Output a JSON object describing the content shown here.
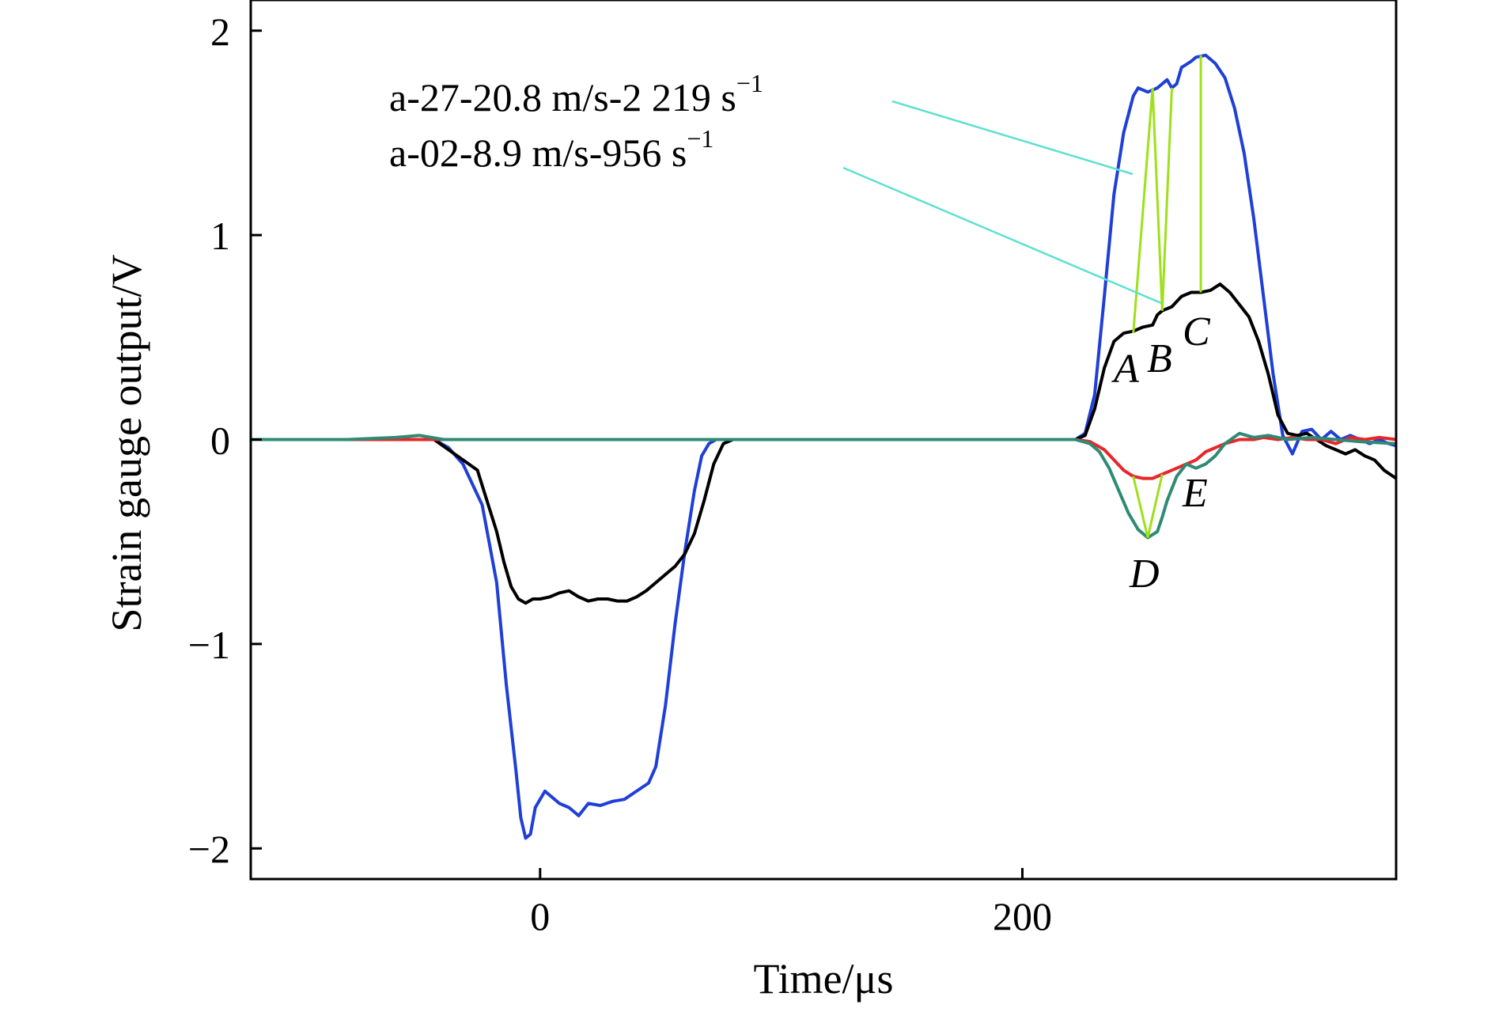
{
  "chart_data": {
    "type": "line",
    "xlabel": "Time/μs",
    "ylabel": "Strain gauge output/V",
    "xlim": [
      -120,
      355
    ],
    "ylim": [
      -2.15,
      2.15
    ],
    "x_ticks": [
      0,
      200
    ],
    "x_tick_labels": [
      "0",
      "200"
    ],
    "y_ticks": [
      -2,
      -1,
      0,
      1,
      2
    ],
    "y_tick_labels": [
      "−2",
      "−1",
      "0",
      "1",
      "2"
    ],
    "grid": false,
    "series": [
      {
        "color": "#1f3fd8",
        "x": [
          -120,
          -100,
          -80,
          -60,
          -44,
          -38,
          -32,
          -24,
          -18,
          -14,
          -10,
          -8,
          -6,
          -4,
          -2,
          2,
          5,
          8,
          12,
          16,
          20,
          25,
          30,
          35,
          40,
          45,
          48,
          52,
          56,
          60,
          64,
          67,
          70,
          73,
          76,
          80,
          100,
          150,
          200,
          222,
          226,
          230,
          234,
          238,
          242,
          246,
          248,
          252,
          256,
          260,
          262,
          264,
          266,
          270,
          272,
          276,
          280,
          284,
          288,
          292,
          296,
          300,
          304,
          308,
          312,
          316,
          320,
          324,
          328,
          332,
          336,
          340,
          344,
          348,
          352,
          355
        ],
        "y": [
          0,
          0,
          0,
          0,
          0,
          -0.04,
          -0.12,
          -0.32,
          -0.7,
          -1.2,
          -1.62,
          -1.85,
          -1.95,
          -1.93,
          -1.8,
          -1.72,
          -1.75,
          -1.78,
          -1.8,
          -1.84,
          -1.78,
          -1.79,
          -1.77,
          -1.76,
          -1.72,
          -1.68,
          -1.6,
          -1.3,
          -0.9,
          -0.55,
          -0.25,
          -0.08,
          -0.02,
          0,
          0,
          0,
          0,
          0,
          0,
          0,
          0.03,
          0.22,
          0.7,
          1.2,
          1.5,
          1.68,
          1.72,
          1.7,
          1.72,
          1.76,
          1.72,
          1.74,
          1.82,
          1.85,
          1.87,
          1.88,
          1.84,
          1.77,
          1.62,
          1.4,
          1.08,
          0.7,
          0.32,
          0.02,
          -0.07,
          0.04,
          0.05,
          0.0,
          0.04,
          0.0,
          0.02,
          0.0,
          -0.02,
          0.0,
          -0.02,
          -0.03
        ]
      },
      {
        "color": "#000000",
        "x": [
          -120,
          -100,
          -80,
          -60,
          -44,
          -38,
          -32,
          -26,
          -22,
          -18,
          -15,
          -12,
          -9,
          -6,
          -3,
          0,
          4,
          8,
          12,
          16,
          20,
          24,
          28,
          32,
          36,
          40,
          44,
          48,
          52,
          56,
          60,
          64,
          68,
          72,
          76,
          80,
          100,
          150,
          200,
          222,
          226,
          230,
          234,
          238,
          242,
          246,
          250,
          254,
          256,
          258,
          262,
          266,
          270,
          274,
          278,
          282,
          286,
          290,
          294,
          298,
          302,
          306,
          310,
          314,
          318,
          322,
          326,
          330,
          334,
          338,
          342,
          346,
          350,
          355
        ],
        "y": [
          0,
          0,
          0,
          0,
          0,
          -0.05,
          -0.1,
          -0.15,
          -0.3,
          -0.45,
          -0.6,
          -0.72,
          -0.78,
          -0.8,
          -0.78,
          -0.78,
          -0.77,
          -0.75,
          -0.74,
          -0.77,
          -0.79,
          -0.78,
          -0.78,
          -0.79,
          -0.79,
          -0.77,
          -0.74,
          -0.7,
          -0.66,
          -0.62,
          -0.56,
          -0.46,
          -0.3,
          -0.12,
          -0.02,
          0,
          0,
          0,
          0,
          0,
          0.02,
          0.15,
          0.35,
          0.48,
          0.52,
          0.53,
          0.55,
          0.56,
          0.61,
          0.63,
          0.65,
          0.7,
          0.72,
          0.72,
          0.73,
          0.76,
          0.72,
          0.66,
          0.6,
          0.48,
          0.32,
          0.12,
          0.03,
          0.02,
          0.03,
          0.0,
          -0.03,
          -0.05,
          -0.07,
          -0.05,
          -0.08,
          -0.1,
          -0.15,
          -0.19
        ]
      },
      {
        "color": "#e8262a",
        "x": [
          -120,
          -80,
          -40,
          0,
          40,
          80,
          120,
          160,
          200,
          222,
          228,
          234,
          238,
          242,
          246,
          250,
          254,
          258,
          262,
          268,
          272,
          276,
          280,
          284,
          290,
          296,
          300,
          306,
          312,
          318,
          324,
          330,
          336,
          342,
          348,
          355
        ],
        "y": [
          0,
          0,
          0,
          0,
          0,
          0,
          0,
          0,
          0,
          0,
          -0.01,
          -0.05,
          -0.1,
          -0.15,
          -0.18,
          -0.19,
          -0.19,
          -0.17,
          -0.15,
          -0.12,
          -0.1,
          -0.06,
          -0.04,
          -0.02,
          0,
          0,
          0.01,
          0.0,
          0.01,
          0.0,
          0.0,
          -0.02,
          0.01,
          0.0,
          0.01,
          0.0
        ]
      },
      {
        "color": "#2f8a74",
        "x": [
          -120,
          -80,
          -60,
          -50,
          -40,
          0,
          40,
          80,
          120,
          160,
          200,
          222,
          228,
          232,
          236,
          240,
          244,
          248,
          252,
          256,
          258,
          260,
          264,
          268,
          272,
          276,
          280,
          284,
          290,
          296,
          302,
          310,
          320,
          330,
          340,
          355
        ],
        "y": [
          0,
          0,
          0.01,
          0.02,
          0,
          0,
          0,
          0,
          0,
          0,
          0,
          0,
          -0.02,
          -0.06,
          -0.14,
          -0.25,
          -0.36,
          -0.44,
          -0.48,
          -0.45,
          -0.38,
          -0.3,
          -0.18,
          -0.12,
          -0.14,
          -0.12,
          -0.08,
          -0.02,
          0.03,
          0.01,
          0.02,
          0.0,
          0.01,
          0.0,
          -0.01,
          -0.02
        ]
      }
    ],
    "annotations": [
      {
        "text": "a-27-20.8 m/s-2 219 s",
        "superscript": "−1"
      },
      {
        "text": "a-02-8.9 m/s-956 s",
        "superscript": "−1"
      }
    ],
    "point_labels": [
      "A",
      "B",
      "C",
      "D",
      "E"
    ],
    "colors": {
      "marker_lines": "#9ee01a",
      "leader_lines": "#5ee0cf"
    }
  }
}
